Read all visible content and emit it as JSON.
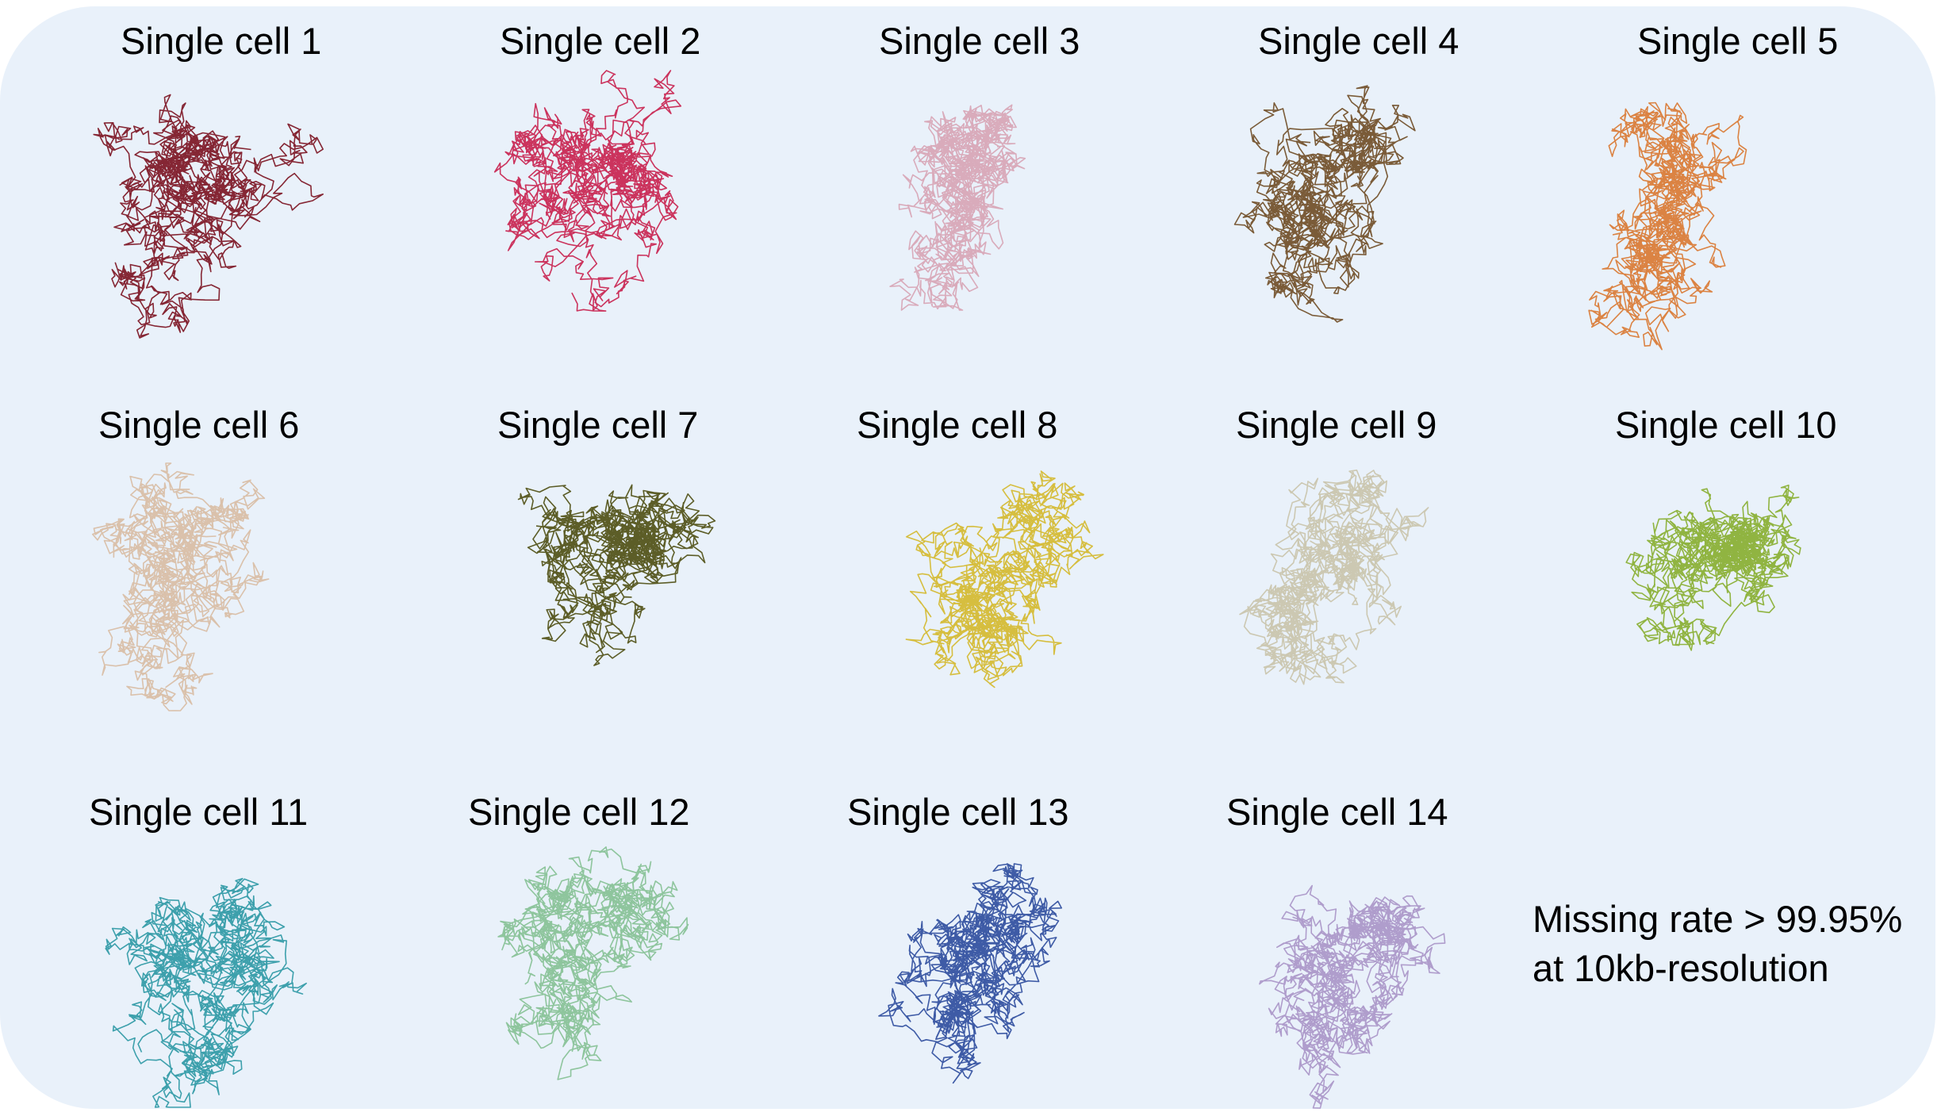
{
  "cells": [
    {
      "label": "Single cell 1",
      "color": "#7a0f1e"
    },
    {
      "label": "Single cell 2",
      "color": "#c81e4b"
    },
    {
      "label": "Single cell 3",
      "color": "#d7a3b4"
    },
    {
      "label": "Single cell 4",
      "color": "#6e4a22"
    },
    {
      "label": "Single cell 5",
      "color": "#d9772f"
    },
    {
      "label": "Single cell 6",
      "color": "#d8bba2"
    },
    {
      "label": "Single cell 7",
      "color": "#4d4d10"
    },
    {
      "label": "Single cell 8",
      "color": "#d4b82a"
    },
    {
      "label": "Single cell 9",
      "color": "#c9c3aa"
    },
    {
      "label": "Single cell 10",
      "color": "#86ad2c"
    },
    {
      "label": "Single cell 11",
      "color": "#2a97a3"
    },
    {
      "label": "Single cell 12",
      "color": "#84c092"
    },
    {
      "label": "Single cell 13",
      "color": "#2b4a9c"
    },
    {
      "label": "Single cell 14",
      "color": "#a994c6"
    }
  ],
  "note": {
    "line1": "Missing rate > 99.95%",
    "line2": "at 10kb-resolution"
  }
}
